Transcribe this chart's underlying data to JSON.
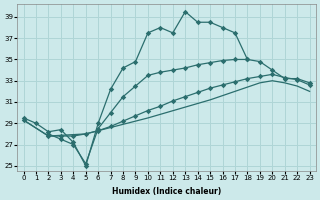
{
  "xlabel": "Humidex (Indice chaleur)",
  "xlim": [
    -0.5,
    23.5
  ],
  "ylim": [
    24.5,
    40.2
  ],
  "xticks": [
    0,
    1,
    2,
    3,
    4,
    5,
    6,
    7,
    8,
    9,
    10,
    11,
    12,
    13,
    14,
    15,
    16,
    17,
    18,
    19,
    20,
    21,
    22,
    23
  ],
  "yticks": [
    25,
    27,
    29,
    31,
    33,
    35,
    37,
    39
  ],
  "bg_color": "#cce9ea",
  "grid_color": "#afd5d6",
  "line_color": "#2b6e6e",
  "curve1": {
    "x": [
      0,
      1,
      2,
      3,
      4,
      5,
      6,
      7,
      8,
      9,
      10,
      11,
      12,
      13,
      14,
      15,
      16,
      17,
      18
    ],
    "y": [
      29.5,
      29.0,
      28.2,
      28.4,
      27.2,
      25.0,
      29.0,
      32.2,
      34.2,
      34.8,
      37.5,
      38.0,
      37.5,
      39.5,
      38.5,
      38.5,
      38.0,
      37.5,
      35.0
    ]
  },
  "curve2": {
    "x": [
      2,
      3,
      4,
      5,
      6,
      7,
      8,
      9,
      10,
      11,
      12,
      13,
      14,
      15,
      16,
      17,
      18,
      19,
      20,
      21,
      22,
      23
    ],
    "y": [
      28.0,
      27.5,
      27.0,
      25.2,
      28.5,
      30.0,
      31.5,
      32.5,
      33.5,
      33.8,
      34.0,
      34.2,
      34.5,
      34.7,
      34.9,
      35.0,
      35.0,
      34.8,
      34.0,
      33.2,
      33.2,
      32.8
    ]
  },
  "curve3": {
    "x": [
      0,
      2,
      3,
      4,
      5,
      6,
      7,
      8,
      9,
      10,
      11,
      12,
      13,
      14,
      15,
      16,
      17,
      18,
      19,
      20,
      21,
      22,
      23
    ],
    "y": [
      29.3,
      27.8,
      27.8,
      27.8,
      28.0,
      28.3,
      28.7,
      29.2,
      29.7,
      30.2,
      30.6,
      31.1,
      31.5,
      31.9,
      32.3,
      32.6,
      32.9,
      33.2,
      33.4,
      33.6,
      33.3,
      33.1,
      32.6
    ]
  },
  "curve4": {
    "x": [
      0,
      2,
      5,
      10,
      15,
      19,
      20,
      21,
      22,
      23
    ],
    "y": [
      29.3,
      27.8,
      28.0,
      29.5,
      31.2,
      32.8,
      33.0,
      32.8,
      32.5,
      32.0
    ]
  }
}
